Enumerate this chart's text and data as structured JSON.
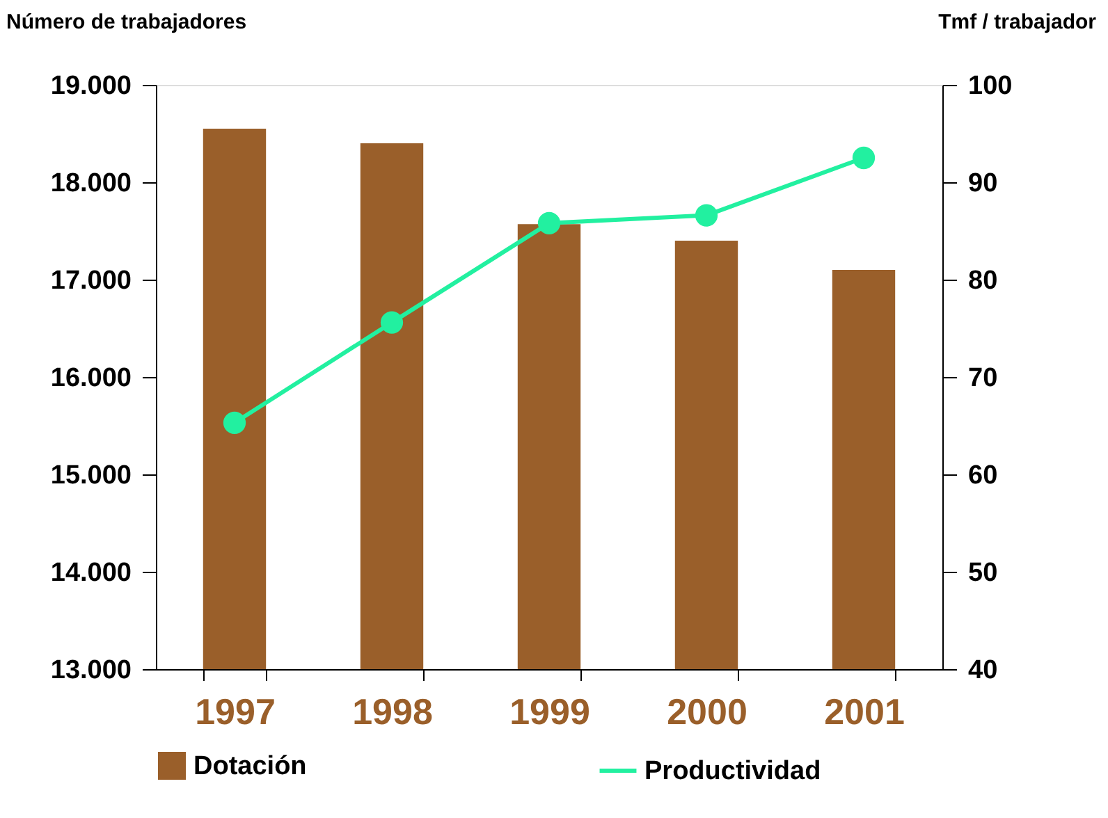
{
  "chart_data": {
    "type": "bar",
    "ylabel": "Número de trabajadores",
    "y2label": "Tmf / trabajador",
    "categories": [
      "1997",
      "1998",
      "1999",
      "2000",
      "2001"
    ],
    "series": [
      {
        "name": "Dotación",
        "color": "#9a5f2a",
        "values": [
          18550,
          18400,
          17570,
          17400,
          17100
        ]
      },
      {
        "name": "Productividad",
        "type": "line",
        "axis": "y2",
        "color": "#22f0a0",
        "values": [
          65.3,
          75.6,
          85.8,
          86.6,
          92.5
        ]
      }
    ],
    "ylim": [
      13000,
      19000
    ],
    "yticks": [
      {
        "value": 13000,
        "label": "13.000"
      },
      {
        "value": 14000,
        "label": "14.000"
      },
      {
        "value": 15000,
        "label": "15.000"
      },
      {
        "value": 16000,
        "label": "16.000"
      },
      {
        "value": 17000,
        "label": "17.000"
      },
      {
        "value": 18000,
        "label": "18.000"
      },
      {
        "value": 19000,
        "label": "19.000"
      }
    ],
    "y2lim": [
      40,
      100
    ],
    "y2ticks": [
      40,
      50,
      60,
      70,
      80,
      90,
      100
    ],
    "grid": false,
    "legend": "bottom",
    "marker": "circle"
  }
}
